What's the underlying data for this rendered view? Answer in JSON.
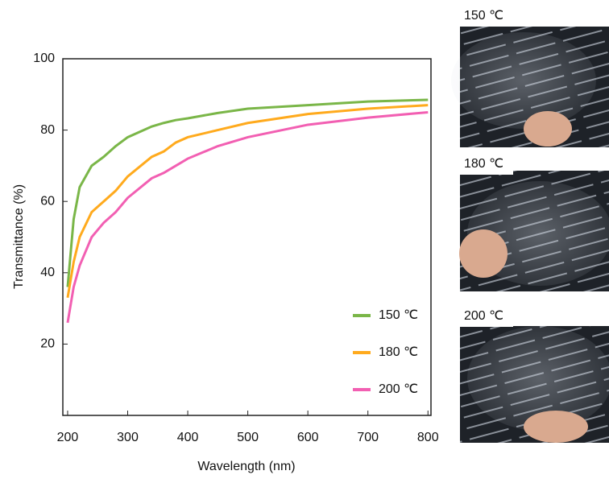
{
  "chart_data": {
    "type": "line",
    "x_label": "Wavelength (nm)",
    "y_label": "Transmittance (%)",
    "x": [
      200,
      210,
      220,
      240,
      260,
      280,
      300,
      340,
      360,
      380,
      400,
      450,
      500,
      600,
      700,
      800
    ],
    "series": [
      {
        "name": "150 ℃",
        "color": "#7ab648",
        "values": [
          36,
          55,
          64,
          70,
          72.5,
          75.5,
          78,
          81,
          82,
          82.8,
          83.3,
          84.8,
          86,
          87,
          88,
          88.5
        ]
      },
      {
        "name": "180 ℃",
        "color": "#ffaa1d",
        "values": [
          33,
          43,
          50,
          57,
          60,
          63,
          67,
          72.5,
          74,
          76.5,
          78,
          80,
          82,
          84.5,
          86,
          87
        ]
      },
      {
        "name": "200 ℃",
        "color": "#f25fb2",
        "values": [
          26,
          36,
          42,
          50,
          54,
          57,
          61,
          66.5,
          68,
          70,
          72,
          75.5,
          78,
          81.5,
          83.5,
          85
        ]
      }
    ],
    "xlim": [
      192,
      805
    ],
    "xticks": [
      200,
      300,
      400,
      500,
      600,
      700,
      800
    ],
    "ylim": [
      0,
      100
    ],
    "yticks": [
      20,
      40,
      60,
      80,
      100
    ],
    "legend": "lower-right"
  },
  "photos": [
    {
      "label": "150 ℃"
    },
    {
      "label": "180 ℃"
    },
    {
      "label": "200 ℃"
    }
  ]
}
